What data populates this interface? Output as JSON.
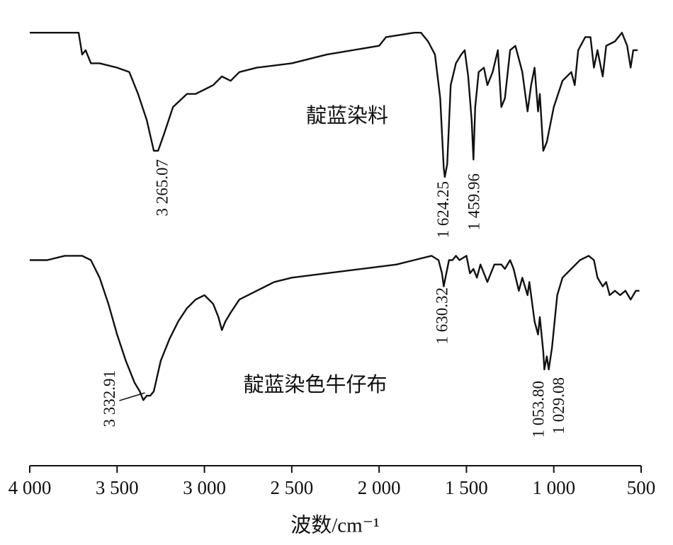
{
  "chart_data": {
    "type": "line",
    "x_label": "波数/cm⁻¹",
    "xlim": [
      4000,
      500
    ],
    "xticks": [
      {
        "value": 4000,
        "label": "4 000"
      },
      {
        "value": 3500,
        "label": "3 500"
      },
      {
        "value": 3000,
        "label": "3 000"
      },
      {
        "value": 2500,
        "label": "2 500"
      },
      {
        "value": 2000,
        "label": "2 000"
      },
      {
        "value": 1500,
        "label": "1 500"
      },
      {
        "value": 1000,
        "label": "1 000"
      },
      500
    ],
    "ylim": [
      0,
      100
    ],
    "series": [
      {
        "name": "靛蓝染料",
        "color": "#111111",
        "x": [
          4000,
          3800,
          3720,
          3700,
          3680,
          3650,
          3600,
          3500,
          3430,
          3380,
          3330,
          3290,
          3265,
          3230,
          3180,
          3100,
          3050,
          3000,
          2950,
          2900,
          2850,
          2800,
          2700,
          2500,
          2300,
          2000,
          1960,
          1800,
          1760,
          1720,
          1680,
          1650,
          1630,
          1624,
          1610,
          1590,
          1560,
          1530,
          1510,
          1490,
          1470,
          1460,
          1450,
          1430,
          1400,
          1380,
          1350,
          1320,
          1300,
          1280,
          1250,
          1220,
          1180,
          1150,
          1130,
          1110,
          1090,
          1080,
          1060,
          1040,
          1000,
          950,
          900,
          880,
          860,
          820,
          790,
          770,
          750,
          720,
          700,
          650,
          610,
          580,
          560,
          545,
          520
        ],
        "values": [
          99,
          99,
          99,
          94,
          95,
          92,
          92,
          91,
          90,
          85,
          79,
          72,
          72,
          76,
          82,
          85,
          85,
          86,
          87,
          89,
          88,
          90,
          91,
          92,
          94,
          96,
          98,
          99,
          99,
          97,
          94,
          84,
          68,
          66,
          69,
          87,
          92,
          94,
          95,
          89,
          79,
          70,
          82,
          90,
          91,
          87,
          90,
          95,
          82,
          84,
          95,
          96,
          90,
          81,
          87,
          91,
          81,
          85,
          72,
          74,
          82,
          88,
          90,
          87,
          95,
          98,
          98,
          91,
          95,
          89,
          96,
          97,
          99,
          96,
          91,
          95,
          95
        ]
      },
      {
        "name": "靛蓝染色牛仔布",
        "color": "#111111",
        "x": [
          4000,
          3900,
          3800,
          3700,
          3650,
          3600,
          3550,
          3500,
          3450,
          3400,
          3370,
          3350,
          3330,
          3310,
          3290,
          3250,
          3200,
          3150,
          3100,
          3050,
          3000,
          2950,
          2920,
          2900,
          2880,
          2850,
          2800,
          2700,
          2600,
          2500,
          2300,
          2100,
          1900,
          1800,
          1700,
          1660,
          1640,
          1630,
          1620,
          1600,
          1580,
          1560,
          1540,
          1500,
          1480,
          1460,
          1440,
          1420,
          1400,
          1380,
          1360,
          1340,
          1300,
          1280,
          1250,
          1230,
          1200,
          1180,
          1150,
          1140,
          1110,
          1090,
          1080,
          1060,
          1054,
          1040,
          1029,
          1010,
          980,
          950,
          900,
          850,
          800,
          770,
          750,
          720,
          700,
          680,
          650,
          620,
          590,
          560,
          530,
          510
        ],
        "values": [
          47,
          47,
          48,
          48,
          47,
          43,
          37,
          30,
          24,
          19,
          17,
          15,
          16,
          16,
          17,
          24,
          29,
          33,
          36,
          38,
          39,
          37,
          34,
          31,
          33,
          35,
          38,
          40,
          42,
          43,
          44,
          45,
          46,
          47,
          48,
          47,
          44,
          41,
          43,
          47,
          47,
          48,
          47,
          48,
          44,
          45,
          43,
          46,
          44,
          42,
          44,
          46,
          46,
          45,
          47,
          45,
          40,
          43,
          39,
          42,
          33,
          30,
          34,
          26,
          22,
          25,
          22,
          27,
          39,
          43,
          45,
          47,
          48,
          47,
          43,
          41,
          42,
          39,
          40,
          39,
          40,
          38,
          40,
          40
        ]
      }
    ],
    "annotations": [
      {
        "label": "3 265.07",
        "value": 3265.07
      },
      {
        "label": "1 624.25",
        "value": 1624.25
      },
      {
        "label": "1 459.96",
        "value": 1459.96
      },
      {
        "label": "1 630.32",
        "value": 1630.32
      },
      {
        "label": "3 332.91",
        "value": 3332.91
      },
      {
        "label": "1 053.80",
        "value": 1053.8
      },
      {
        "label": "1 029.08",
        "value": 1029.08
      }
    ]
  }
}
